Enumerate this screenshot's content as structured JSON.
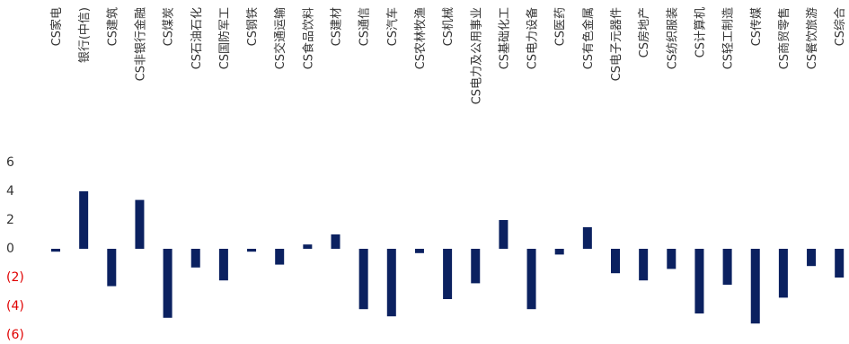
{
  "chart_data": {
    "type": "bar",
    "title": "",
    "xlabel": "",
    "ylabel": "",
    "ylim": [
      -6,
      6
    ],
    "yticks": [
      6,
      4,
      2,
      0,
      -2,
      -4,
      -6
    ],
    "ytick_labels": [
      "6",
      "4",
      "2",
      "0",
      "(2)",
      "(4)",
      "(6)"
    ],
    "bar_color": "#0b2160",
    "negative_label_color": "#e00000",
    "grid": false,
    "categories": [
      "CS家电",
      "银行(中信)",
      "CS建筑",
      "CS非银行金融",
      "CS煤炭",
      "CS石油石化",
      "CS国防军工",
      "CS钢铁",
      "CS交通运输",
      "CS食品饮料",
      "CS建材",
      "CS通信",
      "CS汽车",
      "CS农林牧渔",
      "CS机械",
      "CS电力及公用事业",
      "CS基础化工",
      "CS电力设备",
      "CS医药",
      "CS有色金属",
      "CS电子元器件",
      "CS房地产",
      "CS纺织服装",
      "CS计算机",
      "CS轻工制造",
      "CS传媒",
      "CS商贸零售",
      "CS餐饮旅游",
      "CS综合"
    ],
    "values": [
      -0.2,
      4.0,
      -2.6,
      3.4,
      -4.8,
      -1.3,
      -2.2,
      -0.2,
      -1.1,
      0.3,
      1.0,
      -4.2,
      -4.7,
      -0.3,
      -3.5,
      -2.4,
      2.0,
      -4.2,
      -0.4,
      1.5,
      -1.7,
      -2.2,
      -1.4,
      -4.5,
      -2.5,
      -5.2,
      -3.4,
      -1.2,
      -2.0
    ]
  }
}
